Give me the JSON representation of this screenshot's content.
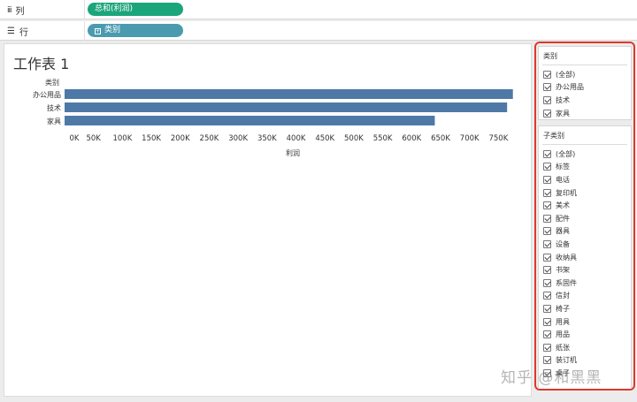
{
  "shelves": {
    "columns": {
      "label": "列",
      "icon": "columns-icon",
      "pill": "总和(利润)"
    },
    "rows": {
      "label": "行",
      "icon": "rows-icon",
      "pill": "类别"
    }
  },
  "sheet": {
    "title": "工作表 1",
    "category_header": "类别",
    "axis_title": "利润"
  },
  "chart_data": {
    "type": "bar",
    "orientation": "horizontal",
    "categories": [
      "办公用品",
      "技术",
      "家具"
    ],
    "values": [
      775000,
      765000,
      640000
    ],
    "xlabel": "利润",
    "ylabel": "类别",
    "xlim": [
      0,
      780000
    ],
    "ticks": [
      0,
      50000,
      100000,
      150000,
      200000,
      250000,
      300000,
      350000,
      400000,
      450000,
      500000,
      550000,
      600000,
      650000,
      700000,
      750000
    ],
    "tick_labels": [
      "0K",
      "50K",
      "100K",
      "150K",
      "200K",
      "250K",
      "300K",
      "350K",
      "400K",
      "450K",
      "500K",
      "550K",
      "600K",
      "650K",
      "700K",
      "750K"
    ],
    "bar_color": "#4e79a7",
    "grid": false
  },
  "filters": {
    "category": {
      "title": "类别",
      "items": [
        "(全部)",
        "办公用品",
        "技术",
        "家具"
      ]
    },
    "subcategory": {
      "title": "子类别",
      "items": [
        "(全部)",
        "标签",
        "电话",
        "复印机",
        "美术",
        "配件",
        "器具",
        "设备",
        "收纳具",
        "书架",
        "系固件",
        "信封",
        "椅子",
        "用具",
        "用品",
        "纸张",
        "装订机",
        "桌子"
      ]
    }
  },
  "watermark": "知乎 @和黑黑",
  "colors": {
    "pill_measure": "#1ba57a",
    "pill_dimension": "#4a9ab0",
    "highlight_border": "#e0372c"
  }
}
